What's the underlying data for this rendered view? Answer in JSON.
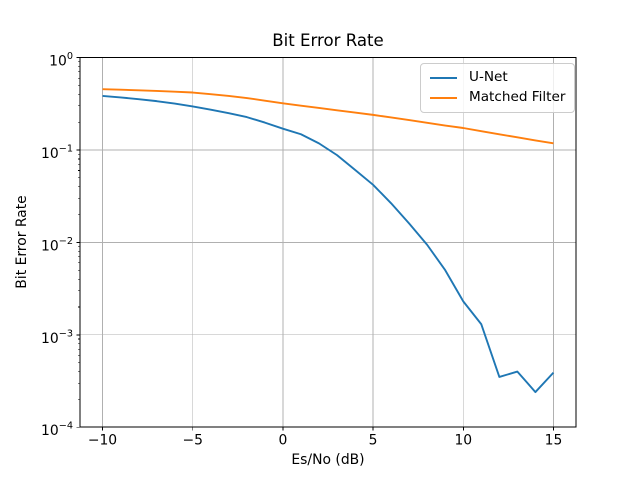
{
  "colors": {
    "figure_background": "#ffffff",
    "plot_background": "#ffffff",
    "grid": "#b0b0b0",
    "spine": "#000000",
    "text": "#000000",
    "series_blue": "#1f77b4",
    "series_orange": "#ff7f0e",
    "legend_border": "#cccccc"
  },
  "chart_data": {
    "type": "line",
    "title": "Bit Error Rate",
    "xlabel": "Es/No (dB)",
    "ylabel": "Bit Error Rate",
    "yscale": "log",
    "grid": true,
    "legend_position": "upper right",
    "xlim": [
      -11.25,
      16.25
    ],
    "ylim": [
      0.0001,
      1.0
    ],
    "x": [
      -10,
      -9,
      -8,
      -7,
      -6,
      -5,
      -4,
      -3,
      -2,
      -1,
      0,
      1,
      2,
      3,
      4,
      5,
      6,
      7,
      8,
      9,
      10,
      11,
      12,
      13,
      14,
      15
    ],
    "series": [
      {
        "name": "U-Net",
        "color": "#1f77b4",
        "values": [
          0.385,
          0.371,
          0.355,
          0.338,
          0.318,
          0.296,
          0.273,
          0.25,
          0.227,
          0.198,
          0.17,
          0.148,
          0.118,
          0.088,
          0.061,
          0.042,
          0.0265,
          0.016,
          0.0094,
          0.005,
          0.0023,
          0.0013,
          0.00035,
          0.0004,
          0.00024,
          0.00039
        ]
      },
      {
        "name": "Matched Filter",
        "color": "#ff7f0e",
        "values": [
          0.455,
          0.449,
          0.443,
          0.436,
          0.428,
          0.419,
          0.402,
          0.385,
          0.365,
          0.342,
          0.32,
          0.302,
          0.285,
          0.269,
          0.254,
          0.24,
          0.225,
          0.211,
          0.197,
          0.184,
          0.173,
          0.16,
          0.148,
          0.137,
          0.127,
          0.118
        ]
      }
    ],
    "x_ticks": {
      "values": [
        -10,
        -5,
        0,
        5,
        10,
        15
      ],
      "labels": [
        "−10",
        "−5",
        "0",
        "5",
        "10",
        "15"
      ]
    },
    "y_ticks": {
      "values": [
        1,
        0.1,
        0.01,
        0.001,
        0.0001
      ],
      "labels": [
        {
          "base": "10",
          "exp": "0"
        },
        {
          "base": "10",
          "exp": "−1"
        },
        {
          "base": "10",
          "exp": "−2"
        },
        {
          "base": "10",
          "exp": "−3"
        },
        {
          "base": "10",
          "exp": "−4"
        }
      ]
    }
  }
}
